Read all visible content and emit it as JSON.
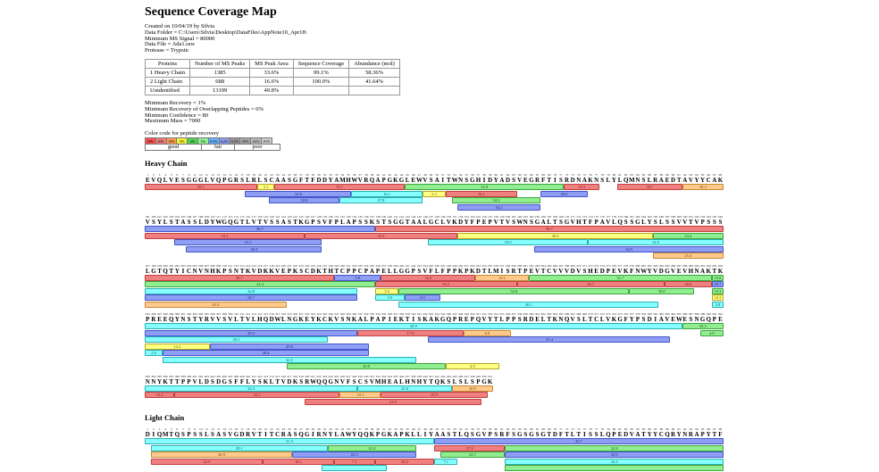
{
  "title": "Sequence Coverage Map",
  "meta": [
    "Created on 10/04/19 by Silvia",
    "Data Folder = C:\\Users\\Silvia\\Desktop\\DataFiles\\AppNote10_Apr18\\",
    "Minimum MS Signal = 80000",
    "Data File = Ada1.raw",
    "Protease = Trypsin"
  ],
  "table": {
    "headers": [
      "Proteins",
      "Number of MS Peaks",
      "MS Peak Area",
      "Sequence Coverage",
      "Abundance (mol)"
    ],
    "rows": [
      [
        "1 Heavy Chain",
        "1385",
        "33.6%",
        "99.1%",
        "58.36%"
      ],
      [
        "2 Light Chain",
        "688",
        "16.6%",
        "100.0%",
        "41.64%"
      ],
      [
        "Unidentified",
        "13199",
        "49.8%",
        "",
        ""
      ]
    ]
  },
  "params": [
    "Minimum Recovery = 1%",
    "Minimum Recovery of Overlapping Peptides = 0%",
    "Minimum Confidence = 80",
    "Maximum Mass = 7000"
  ],
  "legend": {
    "label": "Color code for peptide recovery",
    "cells": [
      {
        "label": "50%",
        "color": "#FF5050"
      },
      {
        "label": "20%",
        "color": "#F08080"
      },
      {
        "label": "10%",
        "color": "#FFA050"
      },
      {
        "label": "5%",
        "color": "#F2F23C"
      },
      {
        "label": "2%",
        "color": "#50D250"
      },
      {
        "label": "1%",
        "color": "#90EE90"
      },
      {
        "label": "0.5%",
        "color": "#64B4FF"
      },
      {
        "label": "0.2%",
        "color": "#8E9EF5"
      },
      {
        "label": "0.1%",
        "color": "#969696"
      },
      {
        "label": ".05%",
        "color": "#A8A8A8"
      },
      {
        "label": ".02%",
        "color": "#BABABA"
      },
      {
        "label": ".01%",
        "color": "#CCCCCC"
      }
    ],
    "groups": [
      {
        "label": "good",
        "span": 5
      },
      {
        "label": "fair",
        "span": 3
      },
      {
        "label": "poor",
        "span": 4
      }
    ]
  },
  "bar_colors": {
    "red": {
      "fill": "#F08080",
      "border": "#C04040",
      "text": "#7C1212"
    },
    "yellow": {
      "fill": "#FFFF80",
      "border": "#B5A428",
      "text": "#6B5900"
    },
    "green": {
      "fill": "#90EE90",
      "border": "#3DA43D",
      "text": "#155415"
    },
    "cyan": {
      "fill": "#85FFFF",
      "border": "#2FAFAF",
      "text": "#045B5B"
    },
    "blue": {
      "fill": "#8E9EF5",
      "border": "#4355C8",
      "text": "#15206E"
    },
    "orange": {
      "fill": "#FFC98C",
      "border": "#C68A34",
      "text": "#6E4300"
    }
  },
  "sections": [
    {
      "name": "Heavy Chain",
      "rows": [
        {
          "start": 1,
          "sequence": "EVQLVESGGGLVQPGRSLRLSCAASGFTFDDYAMHWVRQAPGKGLEWVSAITWNSGHIDYADSVEGRFTISRDNAKNSLYLQMNSLRAEDTAVYYCAK",
          "lanes": [
            [
              {
                "s": 1,
                "e": 20,
                "c": "red",
                "v": "29.5"
              },
              {
                "s": 20,
                "e": 23,
                "c": "yellow",
                "v": "5.3"
              },
              {
                "s": 23,
                "e": 45,
                "c": "red",
                "v": "33.7"
              },
              {
                "s": 45,
                "e": 72,
                "c": "green",
                "v": "32.8"
              },
              {
                "s": 72,
                "e": 78,
                "c": "red",
                "v": "18.3"
              },
              {
                "s": 81,
                "e": 92,
                "c": "red",
                "v": "38.7"
              },
              {
                "s": 92,
                "e": 99,
                "c": "orange",
                "v": "18.3"
              }
            ],
            [
              {
                "s": 18,
                "e": 36,
                "c": "blue",
                "v": "32.8"
              },
              {
                "s": 36,
                "e": 48,
                "c": "cyan",
                "v": "16.1"
              },
              {
                "s": 48,
                "e": 52,
                "c": "yellow",
                "v": "3.3"
              },
              {
                "s": 52,
                "e": 64,
                "c": "red",
                "v": "34.1"
              },
              {
                "s": 68,
                "e": 76,
                "c": "blue",
                "v": "28.0"
              }
            ],
            [
              {
                "s": 22,
                "e": 34,
                "c": "blue",
                "v": "22.8"
              },
              {
                "s": 34,
                "e": 48,
                "c": "cyan",
                "v": "27.8"
              },
              {
                "s": 53,
                "e": 68,
                "c": "green",
                "v": "34.3"
              }
            ],
            [
              {
                "s": 54,
                "e": 68,
                "c": "blue",
                "v": "34.2"
              }
            ]
          ]
        },
        {
          "start": 99,
          "sequence": "VSYLSTASSLDYWGQGTLVTVSSASTKGPSVFPLAPSSKSTSGGTAALGCLVKDYFPEPVTVSWNSGALTSGVHTFPAVLQSSGLYSLSSVVTVPSSS",
          "lanes": [
            [
              {
                "s": 99,
                "e": 138,
                "c": "blue",
                "v": "36.7"
              },
              {
                "s": 138,
                "e": 197,
                "c": "red",
                "v": "38.7"
              }
            ],
            [
              {
                "s": 99,
                "e": 126,
                "c": "red",
                "v": "34.3"
              },
              {
                "s": 126,
                "e": 152,
                "c": "red",
                "v": "35.3"
              },
              {
                "s": 152,
                "e": 185,
                "c": "yellow",
                "v": "48.9"
              },
              {
                "s": 185,
                "e": 197,
                "c": "green",
                "v": "24.4"
              }
            ],
            [
              {
                "s": 104,
                "e": 129,
                "c": "blue",
                "v": "31.1"
              },
              {
                "s": 147,
                "e": 174,
                "c": "cyan",
                "v": "10.6"
              },
              {
                "s": 174,
                "e": 197,
                "c": "cyan",
                "v": "34.8"
              }
            ],
            [
              {
                "s": 106,
                "e": 129,
                "c": "blue",
                "v": "40.2"
              },
              {
                "s": 165,
                "e": 197,
                "c": "blue",
                "v": "34.5"
              }
            ],
            [
              {
                "s": 185,
                "e": 197,
                "c": "orange",
                "v": "25.4"
              }
            ]
          ]
        },
        {
          "start": 197,
          "sequence": "LGTQTYICNVNHKPSNTKVDKKVEPKSCDKTHTCPPCPAPELLGGPSVFLFPPKPKDTLMISRTPEVTCVVVDVSHEDPEVKFNWYVDGVEVHNAKTK",
          "lanes": [
            [
              {
                "s": 197,
                "e": 229,
                "c": "red",
                "v": "38.7"
              },
              {
                "s": 229,
                "e": 237,
                "c": "blue",
                "v": "5.8"
              },
              {
                "s": 237,
                "e": 253,
                "c": "red",
                "v": "32.8"
              },
              {
                "s": 253,
                "e": 262,
                "c": "orange",
                "v": "19.1"
              },
              {
                "s": 262,
                "e": 293,
                "c": "green",
                "v": "31.7"
              },
              {
                "s": 293,
                "e": 295,
                "c": "green",
                "v": "10.8"
              }
            ],
            [
              {
                "s": 197,
                "e": 236,
                "c": "green",
                "v": "24.4"
              },
              {
                "s": 236,
                "e": 260,
                "c": "red",
                "v": "30.2"
              },
              {
                "s": 260,
                "e": 285,
                "c": "red",
                "v": "26.7"
              },
              {
                "s": 285,
                "e": 293,
                "c": "red",
                "v": "28.0"
              },
              {
                "s": 293,
                "e": 295,
                "c": "blue",
                "v": "29.7"
              }
            ],
            [
              {
                "s": 197,
                "e": 233,
                "c": "cyan",
                "v": "34.8"
              },
              {
                "s": 236,
                "e": 240,
                "c": "yellow",
                "v": "3.6"
              },
              {
                "s": 240,
                "e": 279,
                "c": "green",
                "v": "32.8"
              },
              {
                "s": 279,
                "e": 290,
                "c": "green",
                "v": "30.8"
              },
              {
                "s": 293,
                "e": 295,
                "c": "green",
                "v": "10.3"
              }
            ],
            [
              {
                "s": 197,
                "e": 233,
                "c": "blue",
                "v": "34.7"
              },
              {
                "s": 236,
                "e": 241,
                "c": "cyan",
                "v": "5.9"
              },
              {
                "s": 241,
                "e": 247,
                "c": "blue",
                "v": "2.9"
              },
              {
                "s": 293,
                "e": 295,
                "c": "yellow",
                "v": "10.2"
              }
            ],
            [
              {
                "s": 197,
                "e": 221,
                "c": "orange",
                "v": "25.4"
              },
              {
                "s": 240,
                "e": 284,
                "c": "cyan",
                "v": "30.1"
              },
              {
                "s": 293,
                "e": 295,
                "c": "cyan",
                "v": "2.8"
              }
            ]
          ]
        },
        {
          "start": 295,
          "sequence": "PREEQYNSTYRVVSVLTVLHQDWLNGKEYKCKVSNKALPAPIEKTISKAKGQPREPQVYTLPPSRDELTKNQVSLTCLVKGFYPSDIAVEWESNGQPE",
          "lanes": [
            [
              {
                "s": 295,
                "e": 386,
                "c": "cyan",
                "v": "30.9"
              },
              {
                "s": 386,
                "e": 393,
                "c": "green",
                "v": "30.2"
              }
            ],
            [
              {
                "s": 295,
                "e": 331,
                "c": "blue",
                "v": "29.3"
              },
              {
                "s": 331,
                "e": 349,
                "c": "red",
                "v": "17.8"
              },
              {
                "s": 349,
                "e": 357,
                "c": "orange",
                "v": "6.8"
              },
              {
                "s": 389,
                "e": 393,
                "c": "green",
                "v": "4.8"
              }
            ],
            [
              {
                "s": 295,
                "e": 326,
                "c": "cyan",
                "v": "30.3"
              },
              {
                "s": 343,
                "e": 384,
                "c": "blue",
                "v": "31.4"
              }
            ],
            [
              {
                "s": 295,
                "e": 306,
                "c": "yellow",
                "v": "14.2"
              },
              {
                "s": 306,
                "e": 333,
                "c": "blue",
                "v": "29.9"
              }
            ],
            [
              {
                "s": 295,
                "e": 298,
                "c": "cyan",
                "v": "2.8"
              },
              {
                "s": 298,
                "e": 333,
                "c": "blue",
                "v": "30.4"
              }
            ],
            [
              {
                "s": 298,
                "e": 341,
                "c": "cyan",
                "v": "32.5"
              }
            ],
            [
              {
                "s": 319,
                "e": 346,
                "c": "green",
                "v": "20.8"
              },
              {
                "s": 346,
                "e": 355,
                "c": "yellow",
                "v": "4.9"
              }
            ]
          ]
        },
        {
          "start": 393,
          "sequence": "NNYKTTPPVLDSDGSFFLYSKLTVDKSRWQQGNVFSCSVMHEALHNHYTQKSLSLSPGK",
          "lanes": [
            [
              {
                "s": 393,
                "e": 429,
                "c": "cyan",
                "v": "34.3"
              },
              {
                "s": 429,
                "e": 445,
                "c": "cyan",
                "v": "25.8"
              },
              {
                "s": 445,
                "e": 452,
                "c": "orange",
                "v": "20.9"
              }
            ],
            [
              {
                "s": 393,
                "e": 398,
                "c": "red",
                "v": "10.2"
              },
              {
                "s": 398,
                "e": 426,
                "c": "red",
                "v": "32.3"
              },
              {
                "s": 426,
                "e": 433,
                "c": "orange",
                "v": "10.1"
              },
              {
                "s": 433,
                "e": 451,
                "c": "red",
                "v": "19.9"
              }
            ],
            [
              {
                "s": 420,
                "e": 450,
                "c": "red",
                "v": "21.8"
              }
            ]
          ]
        }
      ]
    },
    {
      "name": "Light Chain",
      "rows": [
        {
          "start": 1,
          "sequence": "DIQMTQSPSSLSASVGDRVTITCRASQGIRNYLAWYQQKPGKAPKLLIYAASTLQSGVPSRFSGSGSGTDFTLTISSLQPEDVATYYCQRYNRAPYTF",
          "lanes": [
            [
              {
                "s": 1,
                "e": 50,
                "c": "cyan",
                "v": "31.5"
              },
              {
                "s": 50,
                "e": 99,
                "c": "blue",
                "v": "30.7"
              }
            ],
            [
              {
                "s": 2,
                "e": 32,
                "c": "cyan",
                "v": "29.1"
              },
              {
                "s": 32,
                "e": 47,
                "c": "green",
                "v": "21.0"
              },
              {
                "s": 50,
                "e": 62,
                "c": "red",
                "v": "27.9"
              },
              {
                "s": 62,
                "e": 99,
                "c": "green",
                "v": "32.8"
              }
            ],
            [
              {
                "s": 2,
                "e": 26,
                "c": "orange",
                "v": "26.9"
              },
              {
                "s": 26,
                "e": 47,
                "c": "blue",
                "v": "23.3"
              },
              {
                "s": 51,
                "e": 62,
                "c": "green",
                "v": "34.7"
              },
              {
                "s": 62,
                "e": 99,
                "c": "blue",
                "v": "33.9"
              }
            ],
            [
              {
                "s": 2,
                "e": 21,
                "c": "red",
                "v": "22.9"
              },
              {
                "s": 21,
                "e": 33,
                "c": "red",
                "v": "16.1"
              },
              {
                "s": 33,
                "e": 40,
                "c": "red",
                "v": "7.1"
              },
              {
                "s": 40,
                "e": 50,
                "c": "red",
                "v": "20.2"
              },
              {
                "s": 50,
                "e": 54,
                "c": "cyan",
                "v": "7.1"
              },
              {
                "s": 62,
                "e": 99,
                "c": "cyan",
                "v": "34.3"
              }
            ],
            [
              {
                "s": 31,
                "e": 42,
                "c": "cyan",
                "v": ""
              },
              {
                "s": 62,
                "e": 99,
                "c": "green",
                "v": ""
              }
            ]
          ]
        }
      ]
    }
  ]
}
